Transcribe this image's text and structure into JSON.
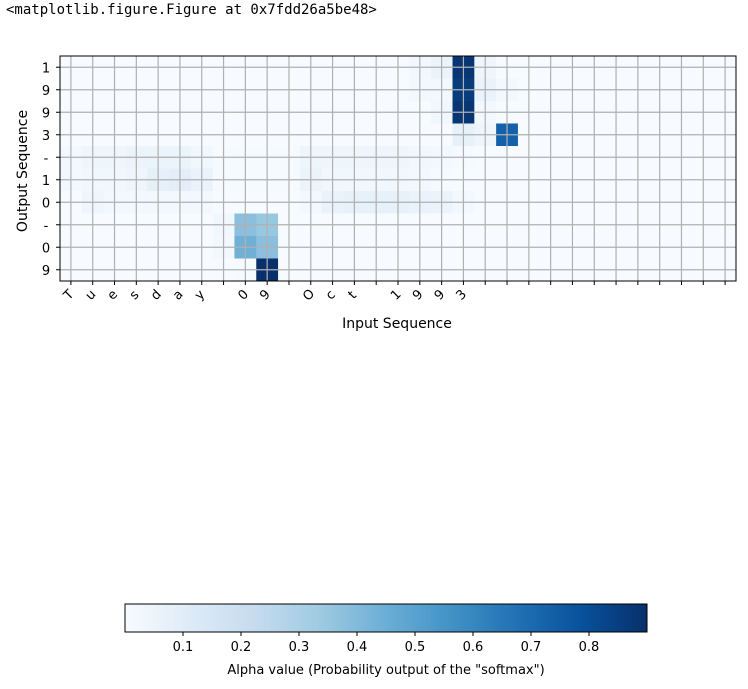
{
  "output_text": "<matplotlib.figure.Figure at 0x7fdd26a5be48>",
  "colors": {
    "cmap_low": "#f7fbff",
    "cmap_high": "#08306b",
    "grid": "#b0b0b0",
    "frame": "#000000"
  },
  "chart_data": {
    "type": "heatmap",
    "xlabel": "Input Sequence",
    "ylabel": "Output Sequence",
    "x_tick_labels": [
      "T",
      "u",
      "e",
      "s",
      "d",
      "a",
      "y",
      "",
      "0",
      "9",
      "",
      "O",
      "c",
      "t",
      "",
      "1",
      "9",
      "9",
      "3",
      "",
      "",
      "",
      "",
      "",
      "",
      "",
      "",
      "",
      "",
      "",
      ""
    ],
    "y_tick_labels": [
      "1",
      "9",
      "9",
      "3",
      "-",
      "1",
      "0",
      "-",
      "0",
      "9"
    ],
    "grid": true,
    "values": [
      [
        0,
        0,
        0,
        0,
        0,
        0,
        0,
        0,
        0,
        0,
        0,
        0,
        0,
        0,
        0,
        0,
        0.03,
        0.05,
        0.88,
        0.04,
        0,
        0,
        0,
        0,
        0,
        0,
        0,
        0,
        0,
        0,
        0
      ],
      [
        0,
        0,
        0,
        0,
        0,
        0,
        0,
        0,
        0,
        0,
        0,
        0,
        0,
        0,
        0,
        0,
        0.02,
        0.02,
        0.86,
        0.06,
        0.02,
        0,
        0,
        0,
        0,
        0,
        0,
        0,
        0,
        0,
        0
      ],
      [
        0,
        0,
        0,
        0,
        0,
        0,
        0,
        0,
        0,
        0,
        0,
        0,
        0,
        0,
        0,
        0,
        0,
        0.03,
        0.88,
        0.02,
        0,
        0,
        0,
        0,
        0,
        0,
        0,
        0,
        0,
        0,
        0
      ],
      [
        0,
        0,
        0,
        0,
        0,
        0,
        0,
        0,
        0,
        0,
        0,
        0,
        0,
        0,
        0,
        0,
        0,
        0,
        0.07,
        0.04,
        0.73,
        0,
        0,
        0,
        0,
        0,
        0,
        0,
        0,
        0,
        0
      ],
      [
        0.02,
        0.04,
        0.04,
        0.05,
        0.05,
        0.05,
        0.03,
        0.01,
        0.01,
        0.01,
        0.01,
        0.04,
        0.04,
        0.04,
        0.04,
        0.04,
        0.03,
        0.02,
        0.01,
        0,
        0,
        0,
        0,
        0,
        0,
        0,
        0,
        0,
        0,
        0,
        0
      ],
      [
        0.02,
        0.03,
        0.03,
        0.04,
        0.08,
        0.09,
        0.06,
        0.01,
        0.01,
        0.01,
        0.01,
        0.05,
        0.03,
        0.03,
        0.03,
        0.03,
        0.02,
        0.01,
        0,
        0,
        0,
        0,
        0,
        0,
        0,
        0,
        0,
        0,
        0,
        0,
        0
      ],
      [
        0,
        0.04,
        0.02,
        0.02,
        0.02,
        0.02,
        0.02,
        0,
        0,
        0,
        0,
        0.02,
        0.06,
        0.07,
        0.07,
        0.07,
        0.06,
        0.05,
        0.02,
        0,
        0,
        0,
        0,
        0,
        0,
        0,
        0,
        0,
        0,
        0,
        0
      ],
      [
        0,
        0,
        0,
        0,
        0,
        0,
        0,
        0.03,
        0.38,
        0.35,
        0,
        0,
        0,
        0,
        0,
        0,
        0,
        0,
        0,
        0,
        0,
        0,
        0,
        0,
        0,
        0,
        0,
        0,
        0,
        0,
        0
      ],
      [
        0,
        0,
        0,
        0,
        0,
        0,
        0,
        0.02,
        0.44,
        0.38,
        0,
        0,
        0,
        0,
        0,
        0,
        0,
        0,
        0,
        0,
        0,
        0,
        0,
        0,
        0,
        0,
        0,
        0,
        0,
        0,
        0
      ],
      [
        0,
        0,
        0,
        0,
        0,
        0,
        0,
        0,
        0.01,
        0.92,
        0,
        0,
        0,
        0,
        0,
        0,
        0,
        0,
        0,
        0,
        0,
        0,
        0,
        0,
        0,
        0,
        0,
        0,
        0,
        0,
        0
      ]
    ],
    "colorbar": {
      "label": "Alpha value (Probability output of the \"softmax\")",
      "range": [
        0,
        0.9
      ],
      "ticks": [
        0.1,
        0.2,
        0.3,
        0.4,
        0.5,
        0.6,
        0.7,
        0.8
      ],
      "tick_labels": [
        "0.1",
        "0.2",
        "0.3",
        "0.4",
        "0.5",
        "0.6",
        "0.7",
        "0.8"
      ],
      "orientation": "horizontal"
    }
  }
}
